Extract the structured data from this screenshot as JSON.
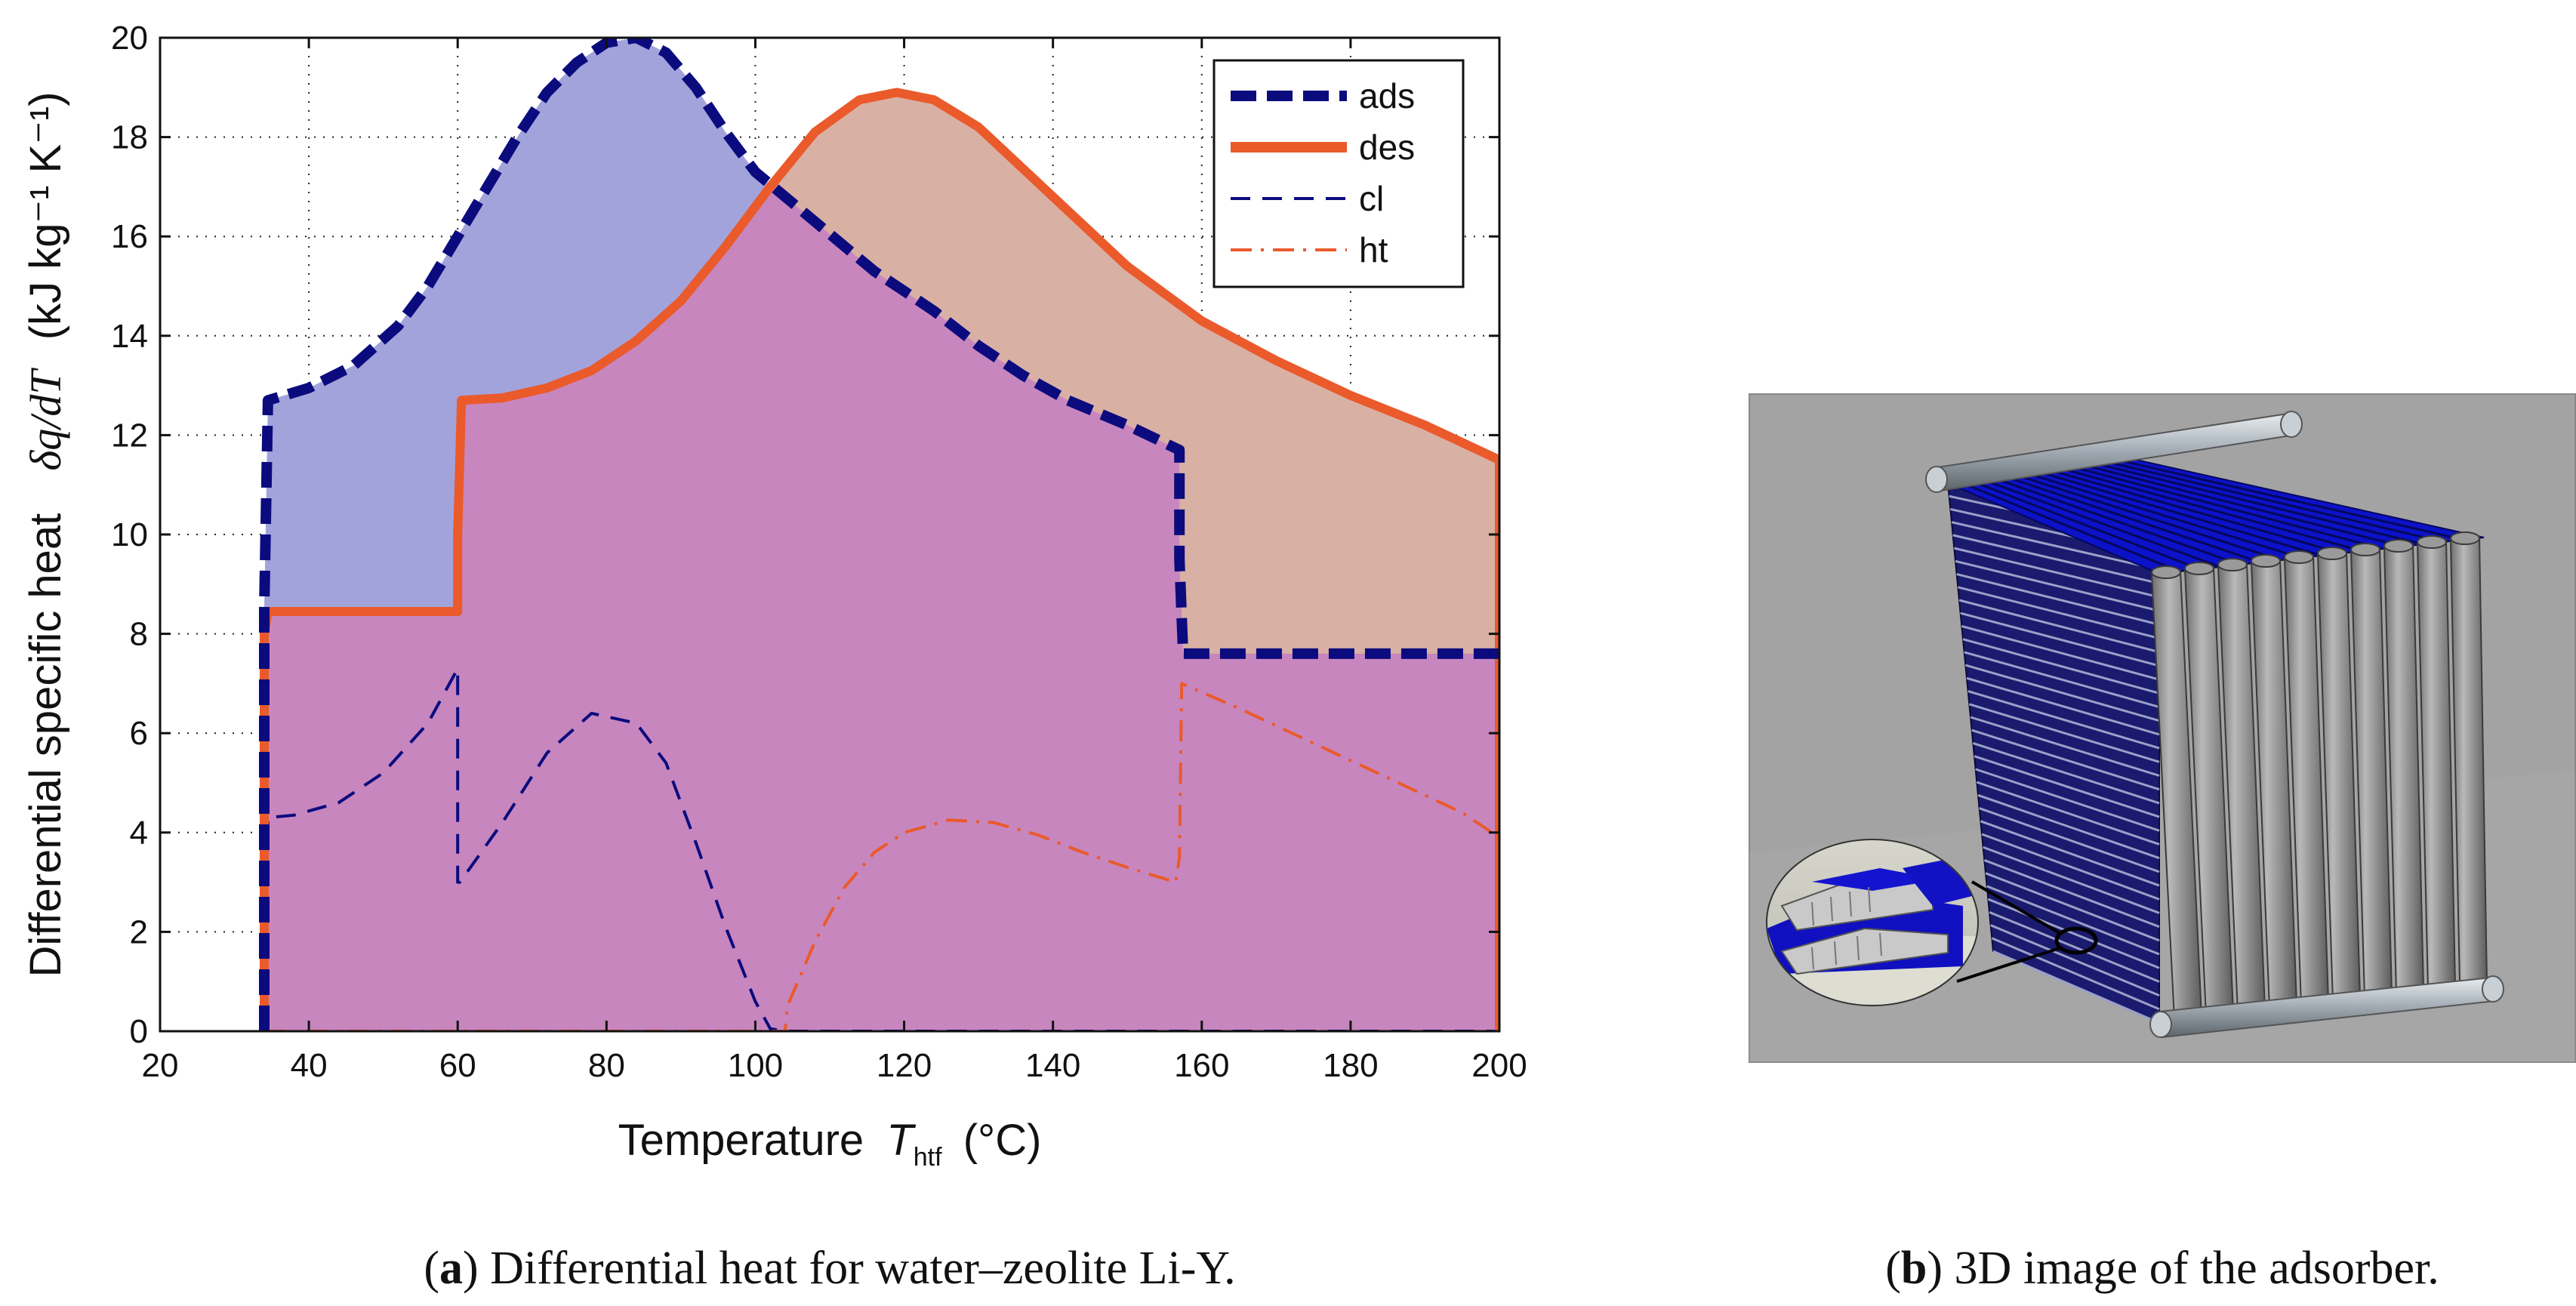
{
  "chart_data": {
    "type": "area",
    "xlabel": "Temperature",
    "xlabel_var": "T",
    "xlabel_sub": "htf",
    "xlabel_unit": "(°C)",
    "ylabel_text": "Differential specific heat",
    "ylabel_var": "δq/dT",
    "ylabel_unit": "(kJ kg⁻¹ K⁻¹)",
    "xlim": [
      20,
      200
    ],
    "ylim": [
      0,
      20
    ],
    "xticks": [
      "20",
      "40",
      "60",
      "80",
      "100",
      "120",
      "140",
      "160",
      "180",
      "200"
    ],
    "yticks": [
      "0",
      "2",
      "4",
      "6",
      "8",
      "10",
      "12",
      "14",
      "16",
      "18",
      "20"
    ],
    "grid": "dotted",
    "legend_position": "top-right",
    "colors": {
      "blue": "#0b0b7e",
      "orange": "#ea5a2b",
      "fill_blue": "#a3a3dc",
      "fill_orange": "#d9b0a4",
      "fill_overlap": "#c886be"
    },
    "series": [
      {
        "name": "ads",
        "style": "thick-dashed",
        "color": "#0b0b7e",
        "x": [
          34,
          34,
          34.5,
          40,
          46,
          52,
          56,
          60,
          64,
          68,
          72,
          76,
          80,
          84,
          88,
          92,
          96,
          100,
          104,
          108,
          112,
          116,
          120,
          124,
          130,
          136,
          142,
          150,
          157,
          157,
          157.5,
          165,
          175,
          185,
          195,
          200
        ],
        "y": [
          0,
          8.5,
          12.7,
          12.95,
          13.4,
          14.2,
          15.0,
          16.0,
          17.0,
          18.0,
          18.9,
          19.5,
          19.9,
          20.0,
          19.7,
          19.0,
          18.1,
          17.3,
          16.8,
          16.3,
          15.8,
          15.3,
          14.9,
          14.5,
          13.8,
          13.2,
          12.7,
          12.2,
          11.7,
          9.5,
          7.6,
          7.6,
          7.6,
          7.6,
          7.6,
          7.6
        ]
      },
      {
        "name": "des",
        "style": "thick-solid",
        "color": "#ea5a2b",
        "x": [
          34,
          34,
          34.5,
          45,
          55,
          60,
          60,
          60.5,
          66,
          72,
          78,
          84,
          90,
          96,
          102,
          108,
          114,
          119,
          124,
          130,
          140,
          150,
          160,
          170,
          180,
          190,
          200,
          200
        ],
        "y": [
          0,
          8.0,
          8.45,
          8.45,
          8.45,
          8.45,
          10,
          12.7,
          12.75,
          12.95,
          13.3,
          13.9,
          14.7,
          15.8,
          17.0,
          18.1,
          18.75,
          18.9,
          18.75,
          18.2,
          16.8,
          15.4,
          14.3,
          13.5,
          12.8,
          12.2,
          11.5,
          0
        ]
      },
      {
        "name": "cl",
        "style": "thin-dashed",
        "color": "#0b0b7e",
        "x": [
          34,
          34.5,
          38,
          44,
          50,
          56,
          60,
          60,
          60.3,
          66,
          72,
          78,
          84,
          88,
          92,
          96,
          100,
          102,
          104,
          110,
          130,
          160,
          200
        ],
        "y": [
          0,
          4.3,
          4.35,
          4.6,
          5.2,
          6.2,
          7.3,
          3.0,
          3.0,
          4.2,
          5.6,
          6.4,
          6.2,
          5.4,
          3.8,
          2.1,
          0.6,
          0.05,
          0,
          0,
          0,
          0,
          0
        ]
      },
      {
        "name": "ht",
        "style": "thin-dashdot",
        "color": "#ea5a2b",
        "x": [
          34,
          60,
          80,
          104,
          104.3,
          108,
          112,
          116,
          120,
          126,
          132,
          138,
          144,
          150,
          156.5,
          157,
          157.3,
          165,
          175,
          185,
          195,
          200
        ],
        "y": [
          0,
          0,
          0,
          0,
          0.5,
          1.8,
          2.9,
          3.6,
          4.0,
          4.25,
          4.2,
          3.95,
          3.6,
          3.3,
          3.0,
          3.5,
          7.0,
          6.5,
          5.8,
          5.1,
          4.4,
          3.9
        ]
      }
    ]
  },
  "captions": {
    "a_label": "a",
    "a_text": " Differential heat for water–zeolite Li-Y.",
    "b_label": "b",
    "b_text": " 3D image of the adsorber."
  }
}
